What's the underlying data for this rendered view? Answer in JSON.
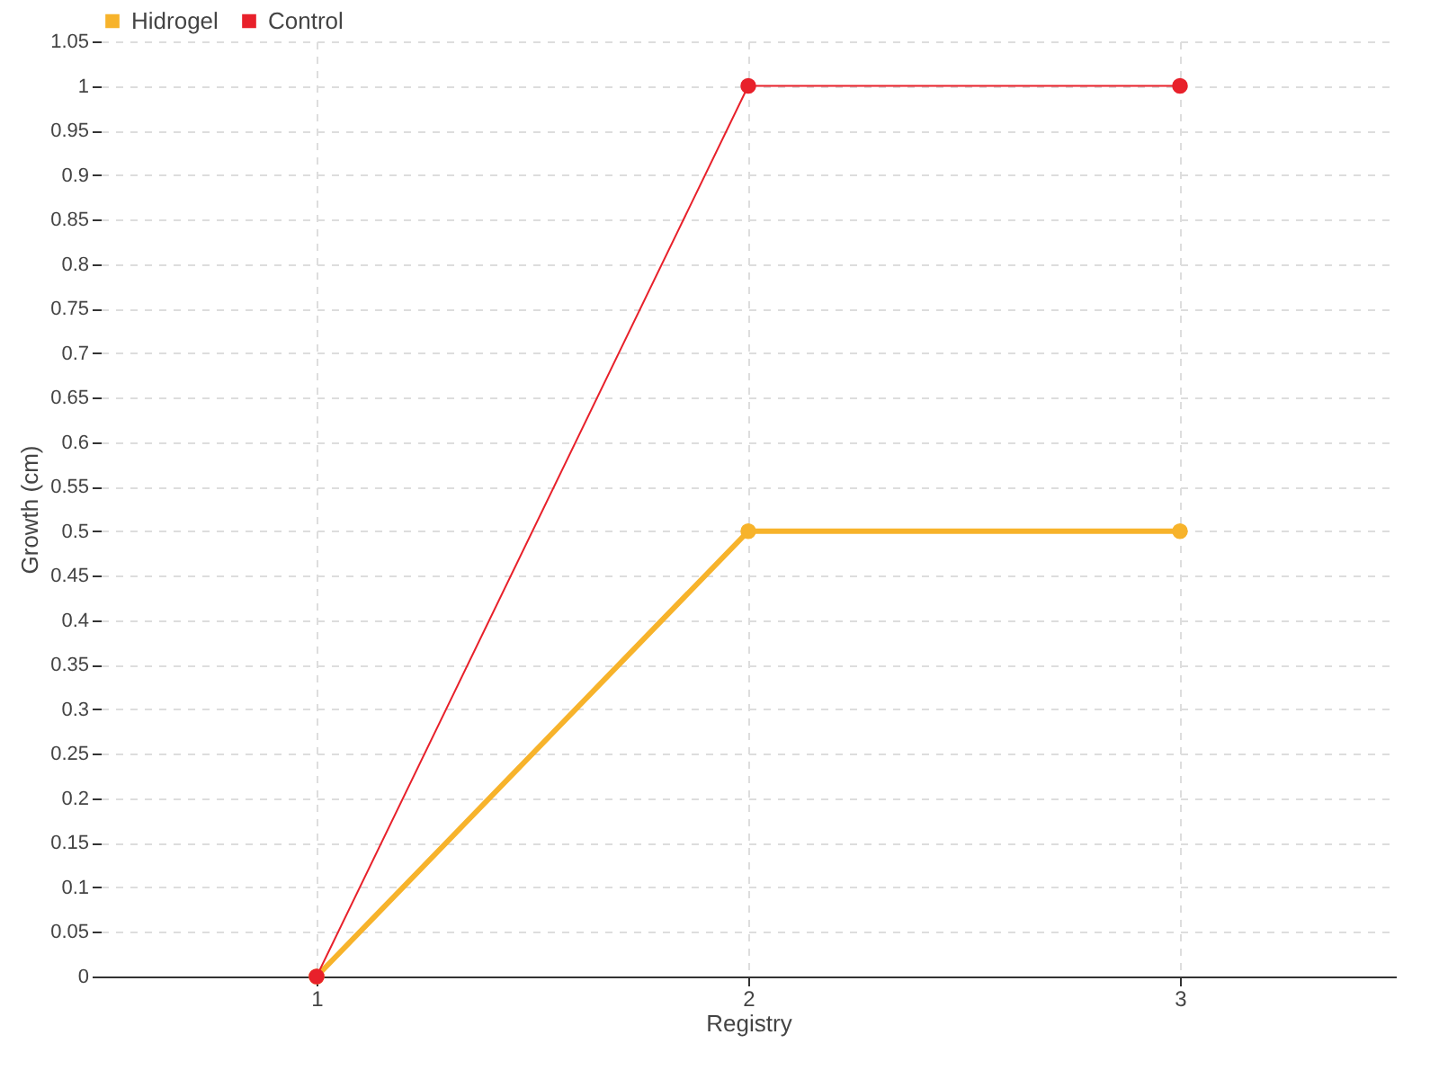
{
  "chart_data": {
    "type": "line",
    "xlabel": "Registry",
    "ylabel": "Growth (cm)",
    "x": [
      1,
      2,
      3
    ],
    "xlim": [
      0.5,
      3.5
    ],
    "xticks": [
      1,
      2,
      3
    ],
    "ylim": [
      0,
      1.05
    ],
    "yticks": [
      0,
      0.05,
      0.1,
      0.15,
      0.2,
      0.25,
      0.3,
      0.35,
      0.4,
      0.45,
      0.5,
      0.55,
      0.6,
      0.65,
      0.7,
      0.75,
      0.8,
      0.85,
      0.9,
      0.95,
      1,
      1.05
    ],
    "grid": true,
    "legend": "top left",
    "marker": "circle",
    "series": [
      {
        "name": "Hidrogel",
        "color": "#f7b32b",
        "values": [
          0,
          0.5,
          0.5
        ]
      },
      {
        "name": "Control",
        "color": "#e8212b",
        "values": [
          0,
          1,
          1
        ]
      }
    ]
  }
}
